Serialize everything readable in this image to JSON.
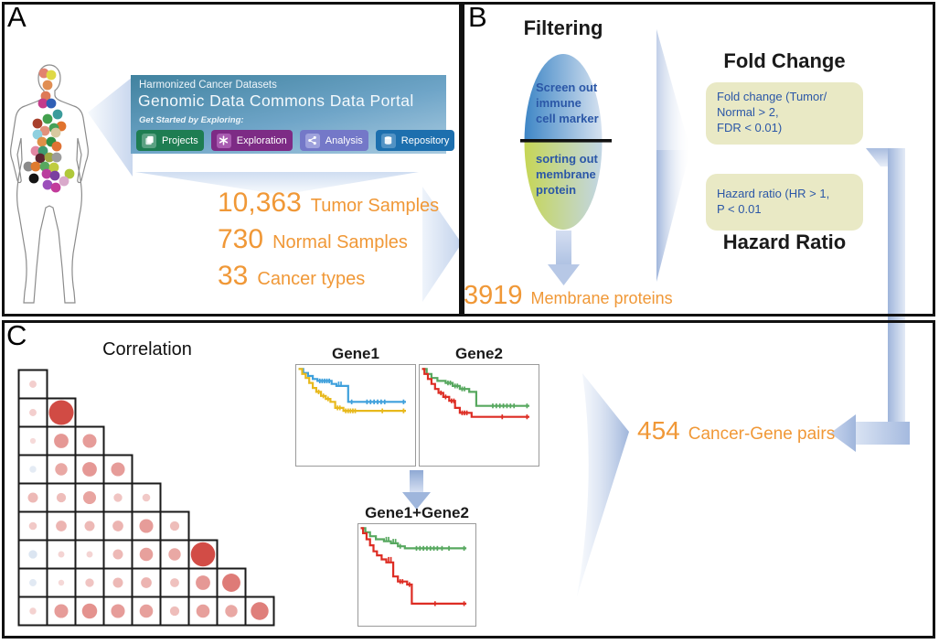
{
  "panels": {
    "a_label": "A",
    "b_label": "B",
    "c_label": "C"
  },
  "colors": {
    "accent_orange": "#F09837",
    "criteria_box_fill": "#E9E9C5",
    "criteria_text_blue": "#2B57A7",
    "flow_arrow_blue": "#9FB5DB"
  },
  "gdc_card": {
    "kicker": "Harmonized Cancer Datasets",
    "title": "Genomic Data Commons Data Portal",
    "subtitle": "Get Started by Exploring:",
    "buttons": [
      {
        "label": "Projects",
        "color": "#1E7D52",
        "chip_color": "#5BA183",
        "icon": "projects-copy-icon"
      },
      {
        "label": "Exploration",
        "color": "#7D2B85",
        "chip_color": "#A85BB0",
        "icon": "exploration-star-icon"
      },
      {
        "label": "Analysis",
        "color": "#7478C8",
        "chip_color": "#9EA1DC",
        "icon": "analysis-share-icon"
      },
      {
        "label": "Repository",
        "color": "#1D6FAE",
        "chip_color": "#5292C4",
        "icon": "repository-database-icon"
      }
    ]
  },
  "stats": [
    {
      "value": "10,363",
      "label": "Tumor Samples"
    },
    {
      "value": "730",
      "label": "Normal Samples"
    },
    {
      "value": "33",
      "label": "Cancer types"
    }
  ],
  "filtering": {
    "title": "Filtering",
    "top_text": "Screen out\nimmune\ncell marker",
    "bottom_text": "sorting out\nmembrane\nprotein",
    "result_value": "3919",
    "result_label": "Membrane proteins"
  },
  "criteria": {
    "fold_change_heading": "Fold Change",
    "fold_change_box": "Fold change (Tumor/\nNormal > 2,\nFDR < 0.01)",
    "hazard_box": "Hazard ratio (HR > 1,\nP < 0.01",
    "hazard_heading": "Hazard Ratio"
  },
  "result": {
    "value": "454",
    "label": "Cancer-Gene pairs"
  },
  "body_figure": {
    "description": "human silhouette with colored dots marking cancer types",
    "dots": [
      [
        40,
        25,
        "#E2836F"
      ],
      [
        48,
        27,
        "#DFD945"
      ],
      [
        44,
        38,
        "#E08E53"
      ],
      [
        42,
        50,
        "#DE7A58"
      ],
      [
        39,
        58,
        "#C43B8B"
      ],
      [
        48,
        58,
        "#2F5FB5"
      ],
      [
        55,
        70,
        "#3B9B9B"
      ],
      [
        44,
        75,
        "#43A04E"
      ],
      [
        33,
        80,
        "#A8402C"
      ],
      [
        59,
        83,
        "#E0732E"
      ],
      [
        51,
        85,
        "#46A057"
      ],
      [
        41,
        88,
        "#E2917B"
      ],
      [
        33,
        92,
        "#8FD0DF"
      ],
      [
        53,
        90,
        "#D8C9A0"
      ],
      [
        38,
        100,
        "#DF9047"
      ],
      [
        48,
        100,
        "#2F8F42"
      ],
      [
        54,
        105,
        "#DF7234"
      ],
      [
        31,
        110,
        "#E287A3"
      ],
      [
        39,
        110,
        "#3F9B70"
      ],
      [
        36,
        118,
        "#5E2430"
      ],
      [
        46,
        117,
        "#A0A840"
      ],
      [
        54,
        117,
        "#9C9C9C"
      ],
      [
        23,
        127,
        "#8A8A8A"
      ],
      [
        31,
        127,
        "#DF7A2E"
      ],
      [
        41,
        127,
        "#57A85F"
      ],
      [
        51,
        128,
        "#BFCC3F"
      ],
      [
        29,
        140,
        "#141414"
      ],
      [
        43,
        135,
        "#BA3F9E"
      ],
      [
        52,
        137,
        "#7A3FA0"
      ],
      [
        68,
        135,
        "#AFC83A"
      ],
      [
        44,
        147,
        "#9C4FBB"
      ],
      [
        62,
        143,
        "#D9A9CB"
      ],
      [
        53,
        150,
        "#C23B9B"
      ]
    ]
  },
  "chart_data": [
    {
      "type": "heatmap",
      "name": "correlation-bubble-matrix",
      "title": "Correlation",
      "layout": "lower-triangular bubble matrix, 9 rows, circle size/color = |correlation|",
      "positive_color": "#CE3D36",
      "negative_color": "#89A8D0",
      "values": [
        [
          0.12
        ],
        [
          0.12,
          0.92
        ],
        [
          0.05,
          0.45,
          0.42
        ],
        [
          -0.1,
          0.35,
          0.45,
          0.42
        ],
        [
          0.25,
          0.22,
          0.38,
          0.18,
          0.15
        ],
        [
          0.15,
          0.28,
          0.25,
          0.28,
          0.42,
          0.22
        ],
        [
          -0.18,
          0.08,
          0.08,
          0.25,
          0.4,
          0.35,
          0.9
        ],
        [
          -0.12,
          0.06,
          0.18,
          0.25,
          0.28,
          0.2,
          0.45,
          0.62
        ],
        [
          0.1,
          0.42,
          0.48,
          0.42,
          0.4,
          0.22,
          0.4,
          0.35,
          0.6
        ]
      ]
    },
    {
      "type": "line",
      "name": "km-gene1",
      "title": "Gene1",
      "subtype": "kaplan-meier survival, x=time, y=survival (unlabeled axes)",
      "series": [
        {
          "name": "group-high",
          "color": "#3FA0DC",
          "points": [
            [
              2,
              4
            ],
            [
              6,
              4
            ],
            [
              6,
              8
            ],
            [
              10,
              8
            ],
            [
              10,
              11
            ],
            [
              14,
              11
            ],
            [
              14,
              14
            ],
            [
              18,
              14
            ],
            [
              18,
              16
            ],
            [
              30,
              16
            ],
            [
              30,
              19
            ],
            [
              34,
              19
            ],
            [
              34,
              21
            ],
            [
              44,
              21
            ],
            [
              44,
              37
            ],
            [
              58,
              37
            ],
            [
              93,
              37
            ]
          ],
          "ticks": [
            [
              20,
              16
            ],
            [
              22,
              16
            ],
            [
              24,
              16
            ],
            [
              26,
              16
            ],
            [
              28,
              16
            ],
            [
              36,
              19
            ],
            [
              38,
              19
            ],
            [
              47,
              37
            ],
            [
              60,
              37
            ],
            [
              63,
              37
            ],
            [
              66,
              37
            ],
            [
              69,
              37
            ],
            [
              72,
              37
            ],
            [
              75,
              37
            ],
            [
              91,
              37
            ]
          ]
        },
        {
          "name": "group-low",
          "color": "#E8B91C",
          "points": [
            [
              2,
              4
            ],
            [
              5,
              4
            ],
            [
              5,
              9
            ],
            [
              8,
              9
            ],
            [
              8,
              13
            ],
            [
              11,
              13
            ],
            [
              11,
              18
            ],
            [
              14,
              18
            ],
            [
              14,
              23
            ],
            [
              17,
              23
            ],
            [
              17,
              27
            ],
            [
              21,
              27
            ],
            [
              21,
              31
            ],
            [
              25,
              31
            ],
            [
              25,
              34
            ],
            [
              29,
              34
            ],
            [
              29,
              37
            ],
            [
              33,
              37
            ],
            [
              33,
              43
            ],
            [
              40,
              43
            ],
            [
              40,
              46
            ],
            [
              52,
              46
            ],
            [
              93,
              46
            ]
          ],
          "ticks": [
            [
              19,
              27
            ],
            [
              23,
              31
            ],
            [
              27,
              34
            ],
            [
              35,
              43
            ],
            [
              37,
              43
            ],
            [
              42,
              46
            ],
            [
              44,
              46
            ],
            [
              46,
              46
            ],
            [
              48,
              46
            ],
            [
              50,
              46
            ],
            [
              73,
              46
            ],
            [
              91,
              46
            ]
          ]
        }
      ]
    },
    {
      "type": "line",
      "name": "km-gene2",
      "title": "Gene2",
      "subtype": "kaplan-meier survival, x=time, y=survival (unlabeled axes)",
      "series": [
        {
          "name": "group-high",
          "color": "#57A85F",
          "points": [
            [
              2,
              4
            ],
            [
              6,
              4
            ],
            [
              6,
              9
            ],
            [
              10,
              9
            ],
            [
              10,
              13
            ],
            [
              15,
              13
            ],
            [
              15,
              16
            ],
            [
              22,
              16
            ],
            [
              22,
              18
            ],
            [
              28,
              18
            ],
            [
              28,
              21
            ],
            [
              34,
              21
            ],
            [
              34,
              24
            ],
            [
              42,
              24
            ],
            [
              42,
              27
            ],
            [
              48,
              27
            ],
            [
              48,
              41
            ],
            [
              60,
              41
            ],
            [
              93,
              41
            ]
          ],
          "ticks": [
            [
              24,
              18
            ],
            [
              26,
              18
            ],
            [
              30,
              21
            ],
            [
              32,
              21
            ],
            [
              36,
              24
            ],
            [
              38,
              24
            ],
            [
              62,
              41
            ],
            [
              65,
              41
            ],
            [
              68,
              41
            ],
            [
              71,
              41
            ],
            [
              74,
              41
            ],
            [
              77,
              41
            ],
            [
              80,
              41
            ],
            [
              91,
              41
            ]
          ]
        },
        {
          "name": "group-low",
          "color": "#DD2C23",
          "points": [
            [
              2,
              4
            ],
            [
              4,
              4
            ],
            [
              4,
              9
            ],
            [
              7,
              9
            ],
            [
              7,
              14
            ],
            [
              10,
              14
            ],
            [
              10,
              19
            ],
            [
              13,
              19
            ],
            [
              13,
              24
            ],
            [
              16,
              24
            ],
            [
              16,
              28
            ],
            [
              20,
              28
            ],
            [
              20,
              32
            ],
            [
              25,
              32
            ],
            [
              25,
              36
            ],
            [
              30,
              36
            ],
            [
              30,
              43
            ],
            [
              34,
              43
            ],
            [
              34,
              48
            ],
            [
              44,
              48
            ],
            [
              44,
              52
            ],
            [
              56,
              52
            ],
            [
              93,
              52
            ]
          ],
          "ticks": [
            [
              18,
              28
            ],
            [
              22,
              32
            ],
            [
              27,
              36
            ],
            [
              29,
              36
            ],
            [
              36,
              48
            ],
            [
              38,
              48
            ],
            [
              40,
              48
            ],
            [
              70,
              52
            ],
            [
              91,
              52
            ]
          ]
        }
      ]
    },
    {
      "type": "line",
      "name": "km-gene1-plus-gene2",
      "title": "Gene1+Gene2",
      "subtype": "kaplan-meier survival, x=time, y=survival (unlabeled axes)",
      "series": [
        {
          "name": "group-high",
          "color": "#57A85F",
          "points": [
            [
              2,
              4
            ],
            [
              6,
              4
            ],
            [
              6,
              8
            ],
            [
              10,
              8
            ],
            [
              10,
              12
            ],
            [
              15,
              12
            ],
            [
              15,
              15
            ],
            [
              22,
              15
            ],
            [
              22,
              17
            ],
            [
              28,
              17
            ],
            [
              28,
              19
            ],
            [
              34,
              19
            ],
            [
              34,
              22
            ],
            [
              40,
              22
            ],
            [
              40,
              24
            ],
            [
              48,
              24
            ],
            [
              93,
              24
            ]
          ],
          "ticks": [
            [
              24,
              15
            ],
            [
              26,
              15
            ],
            [
              30,
              17
            ],
            [
              32,
              17
            ],
            [
              36,
              22
            ],
            [
              50,
              24
            ],
            [
              53,
              24
            ],
            [
              56,
              24
            ],
            [
              59,
              24
            ],
            [
              62,
              24
            ],
            [
              65,
              24
            ],
            [
              68,
              24
            ],
            [
              72,
              24
            ],
            [
              78,
              24
            ],
            [
              91,
              24
            ]
          ]
        },
        {
          "name": "group-low",
          "color": "#DD2C23",
          "points": [
            [
              2,
              4
            ],
            [
              4,
              4
            ],
            [
              4,
              9
            ],
            [
              7,
              9
            ],
            [
              7,
              15
            ],
            [
              10,
              15
            ],
            [
              10,
              21
            ],
            [
              13,
              21
            ],
            [
              13,
              27
            ],
            [
              16,
              27
            ],
            [
              16,
              31
            ],
            [
              20,
              31
            ],
            [
              20,
              35
            ],
            [
              24,
              35
            ],
            [
              24,
              38
            ],
            [
              30,
              38
            ],
            [
              30,
              52
            ],
            [
              34,
              52
            ],
            [
              34,
              57
            ],
            [
              42,
              57
            ],
            [
              42,
              60
            ],
            [
              46,
              60
            ],
            [
              46,
              79
            ],
            [
              60,
              79
            ],
            [
              93,
              79
            ]
          ],
          "ticks": [
            [
              26,
              35
            ],
            [
              28,
              35
            ],
            [
              36,
              57
            ],
            [
              38,
              57
            ],
            [
              44,
              60
            ],
            [
              66,
              79
            ],
            [
              91,
              79
            ]
          ]
        }
      ]
    }
  ]
}
